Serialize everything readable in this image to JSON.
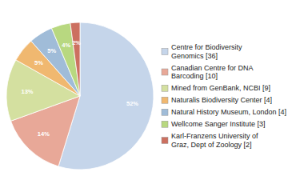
{
  "chart_data": {
    "type": "pie",
    "categories": [
      "Centre for Biodiversity\nGenomics [36]",
      "Canadian Centre for DNA\nBarcoding [10]",
      "Mined from GenBank, NCBI [9]",
      "Naturalis Biodiversity Center [4]",
      "Natural History Museum, London [4]",
      "Wellcome Sanger Institute [3]",
      "Karl-Franzens University of\nGraz, Dept of Zoology [2]"
    ],
    "values": [
      52,
      14,
      13,
      5,
      5,
      4,
      2
    ],
    "value_labels": [
      "52%",
      "14%",
      "13%",
      "5%",
      "5%",
      "4%",
      "2%"
    ],
    "colors": [
      "#c5d5ea",
      "#e8a898",
      "#d4e0a0",
      "#f0b870",
      "#a0bcd8",
      "#b8d880",
      "#cc7060"
    ],
    "data_labels": true,
    "legend": "right"
  }
}
